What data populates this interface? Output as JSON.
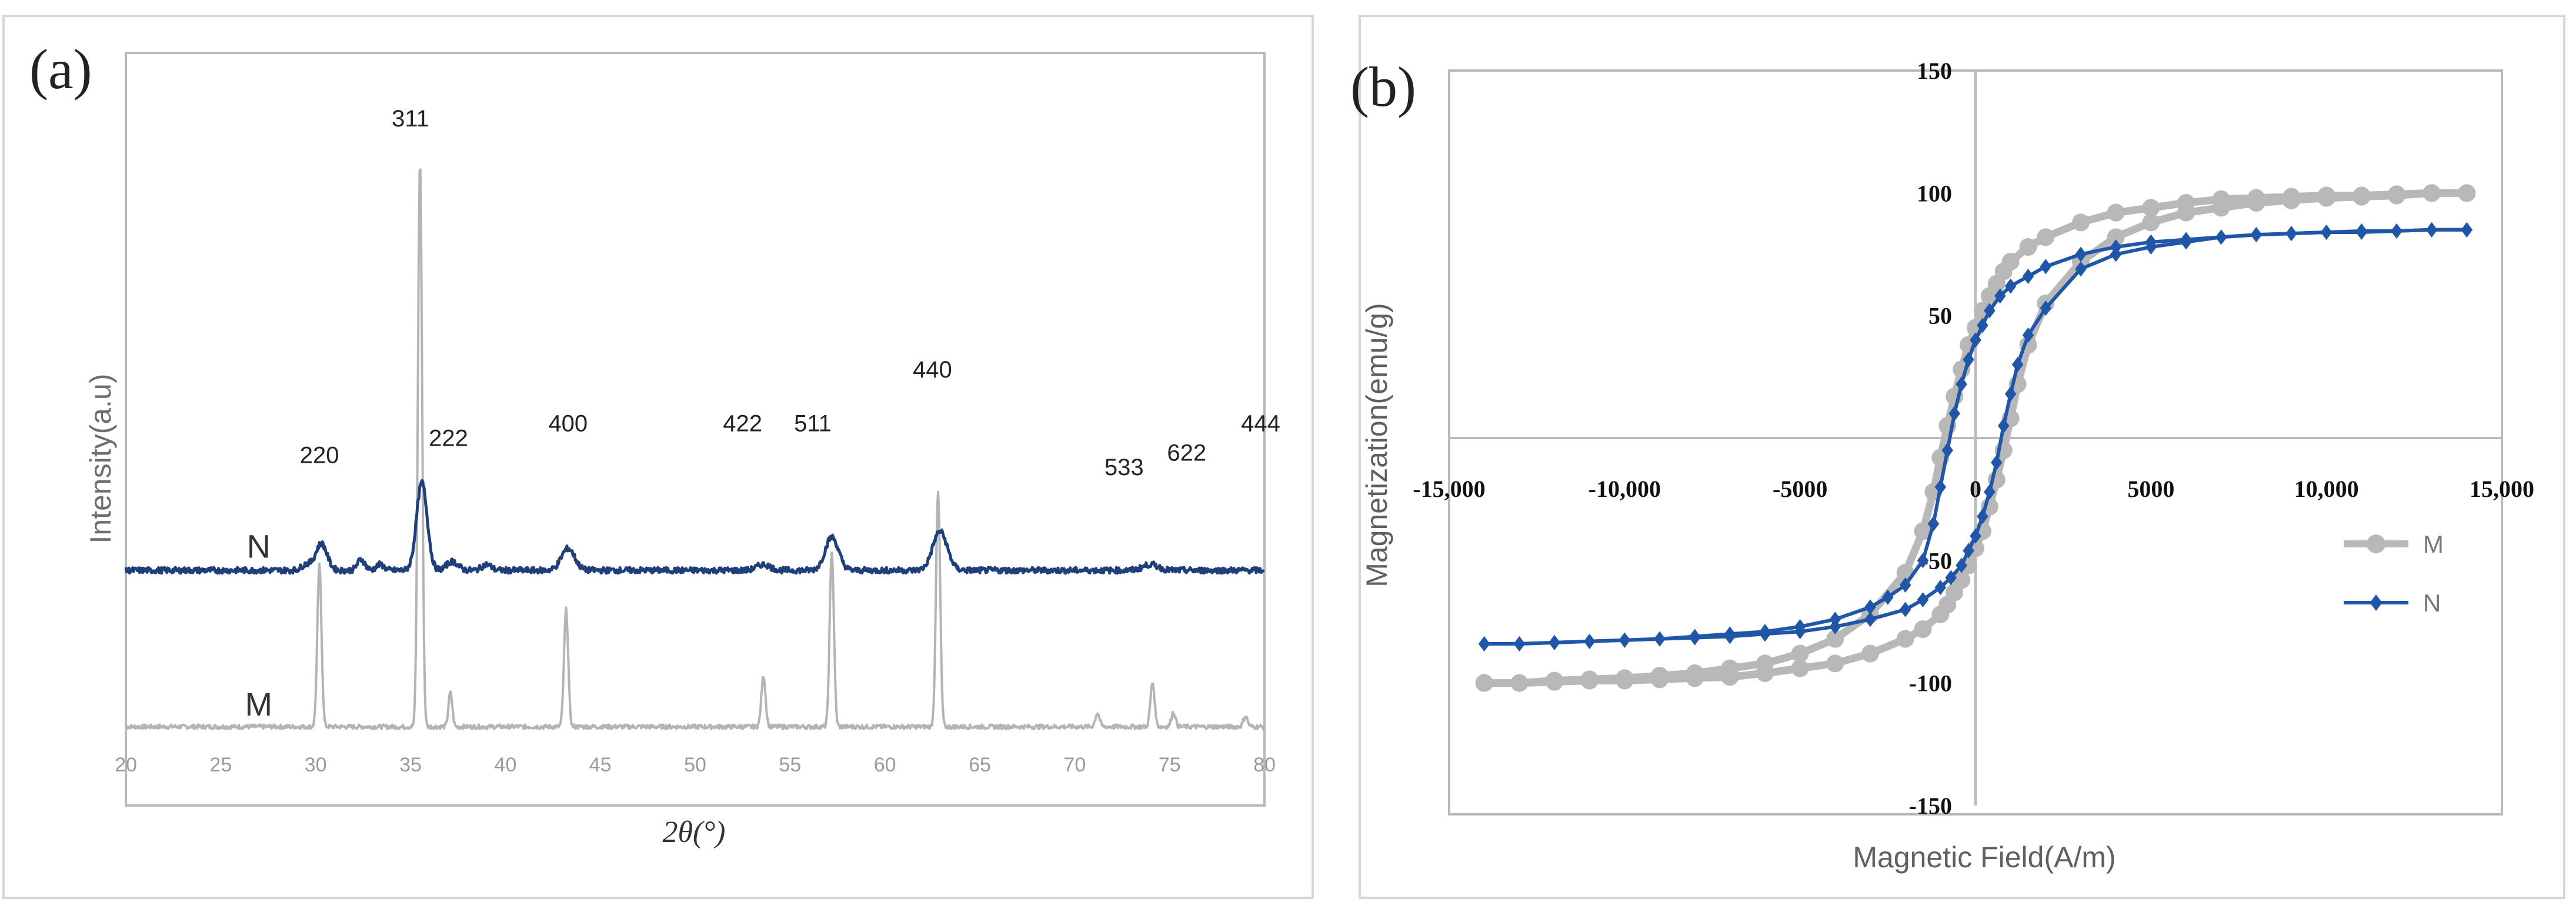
{
  "chart_data": [
    {
      "panel": "(a)",
      "type": "line",
      "xlabel": "2θ(°)",
      "ylabel": "Intensity(a.u)",
      "xlim": [
        20,
        80
      ],
      "x_ticks": [
        "20",
        "25",
        "30",
        "35",
        "40",
        "45",
        "50",
        "55",
        "60",
        "65",
        "70",
        "75",
        "80"
      ],
      "series": [
        {
          "name": "N",
          "color": "#1f3f7a",
          "baseline": 0.94,
          "peaks": [
            {
              "x": 29.5,
              "h": 0.12,
              "w": 0.25
            },
            {
              "x": 30.3,
              "h": 0.55,
              "w": 0.3
            },
            {
              "x": 32.4,
              "h": 0.22,
              "w": 0.2
            },
            {
              "x": 33.4,
              "h": 0.12,
              "w": 0.2
            },
            {
              "x": 35.6,
              "h": 1.8,
              "w": 0.28
            },
            {
              "x": 37.2,
              "h": 0.18,
              "w": 0.3
            },
            {
              "x": 39.0,
              "h": 0.12,
              "w": 0.25
            },
            {
              "x": 43.3,
              "h": 0.45,
              "w": 0.35
            },
            {
              "x": 53.6,
              "h": 0.12,
              "w": 0.35
            },
            {
              "x": 57.2,
              "h": 0.68,
              "w": 0.35
            },
            {
              "x": 62.9,
              "h": 0.8,
              "w": 0.38
            },
            {
              "x": 74.0,
              "h": 0.12,
              "w": 0.4
            }
          ]
        },
        {
          "name": "M",
          "color": "#b4b4b4",
          "baseline": 0.0,
          "peaks": [
            {
              "x": 30.2,
              "h": 3.3,
              "w": 0.11
            },
            {
              "x": 35.5,
              "h": 11.6,
              "w": 0.11
            },
            {
              "x": 37.1,
              "h": 0.7,
              "w": 0.1
            },
            {
              "x": 43.2,
              "h": 2.4,
              "w": 0.11
            },
            {
              "x": 53.6,
              "h": 1.05,
              "w": 0.11
            },
            {
              "x": 57.2,
              "h": 3.6,
              "w": 0.11
            },
            {
              "x": 62.8,
              "h": 4.8,
              "w": 0.11
            },
            {
              "x": 71.2,
              "h": 0.28,
              "w": 0.11
            },
            {
              "x": 74.1,
              "h": 0.9,
              "w": 0.11
            },
            {
              "x": 75.2,
              "h": 0.3,
              "w": 0.11
            },
            {
              "x": 79.0,
              "h": 0.22,
              "w": 0.11
            }
          ]
        }
      ],
      "series_labels": [
        {
          "text": "N",
          "x": 27.0,
          "y": 1.2
        },
        {
          "text": "M",
          "x": 27.0,
          "y": 0.23
        }
      ],
      "peak_labels": [
        {
          "text": "220",
          "x": 30.2,
          "y": 2.2
        },
        {
          "text": "311",
          "x": 35.0,
          "y": 12.3
        },
        {
          "text": "222",
          "x": 37.0,
          "y": 2.55
        },
        {
          "text": "400",
          "x": 43.3,
          "y": 2.85
        },
        {
          "text": "422",
          "x": 52.5,
          "y": 2.85
        },
        {
          "text": "511",
          "x": 56.2,
          "y": 2.85
        },
        {
          "text": "440",
          "x": 62.5,
          "y": 3.95
        },
        {
          "text": "533",
          "x": 72.6,
          "y": 1.95
        },
        {
          "text": "622",
          "x": 75.9,
          "y": 2.25
        },
        {
          "text": "444",
          "x": 79.8,
          "y": 2.85
        }
      ],
      "panel_label": "(a)"
    },
    {
      "panel": "(b)",
      "type": "line",
      "xlabel": "Magnetic Field(A/m)",
      "ylabel": "Magnetization(emu/g)",
      "xlim": [
        -15000,
        15000
      ],
      "ylim": [
        -150,
        150
      ],
      "x_ticks": [
        {
          "value": -15000,
          "label": "-15,000"
        },
        {
          "value": -10000,
          "label": "-10,000"
        },
        {
          "value": -5000,
          "label": "-5000"
        },
        {
          "value": 0,
          "label": "0"
        },
        {
          "value": 5000,
          "label": "5000"
        },
        {
          "value": 10000,
          "label": "10,000"
        },
        {
          "value": 15000,
          "label": "15,000"
        }
      ],
      "y_ticks": [
        {
          "value": 150,
          "label": "150"
        },
        {
          "value": 100,
          "label": "100"
        },
        {
          "value": 50,
          "label": "50"
        },
        {
          "value": -50,
          "label": "-50"
        },
        {
          "value": -100,
          "label": "-100"
        },
        {
          "value": -150,
          "label": "-150"
        }
      ],
      "legend": [
        "M",
        "N"
      ],
      "legend_position": "right",
      "series": [
        {
          "name": "M",
          "color": "#b8b8b8",
          "marker": "circle",
          "descending": [
            [
              14000,
              100
            ],
            [
              13000,
              100
            ],
            [
              12000,
              99.5
            ],
            [
              11000,
              99
            ],
            [
              10000,
              99
            ],
            [
              9000,
              98.5
            ],
            [
              8000,
              98
            ],
            [
              7000,
              97.5
            ],
            [
              6000,
              96
            ],
            [
              5000,
              94
            ],
            [
              4000,
              92
            ],
            [
              3000,
              88
            ],
            [
              2000,
              82
            ],
            [
              1500,
              78
            ],
            [
              1000,
              72
            ],
            [
              800,
              68
            ],
            [
              600,
              63
            ],
            [
              400,
              58
            ],
            [
              200,
              52
            ],
            [
              0,
              45
            ],
            [
              -200,
              38
            ],
            [
              -400,
              28
            ],
            [
              -600,
              17
            ],
            [
              -800,
              5
            ],
            [
              -1000,
              -8
            ],
            [
              -1200,
              -22
            ],
            [
              -1500,
              -38
            ],
            [
              -2000,
              -55
            ],
            [
              -3000,
              -72
            ],
            [
              -4000,
              -82
            ],
            [
              -5000,
              -88
            ],
            [
              -6000,
              -92
            ],
            [
              -7000,
              -94
            ],
            [
              -8000,
              -96
            ],
            [
              -9000,
              -97
            ],
            [
              -10000,
              -98
            ],
            [
              -11000,
              -98.5
            ],
            [
              -12000,
              -99
            ],
            [
              -13000,
              -100
            ],
            [
              -14000,
              -100
            ]
          ],
          "ascending": [
            [
              -14000,
              -100
            ],
            [
              -13000,
              -100
            ],
            [
              -12000,
              -99.5
            ],
            [
              -11000,
              -99
            ],
            [
              -10000,
              -99
            ],
            [
              -9000,
              -98.5
            ],
            [
              -8000,
              -98
            ],
            [
              -7000,
              -97.5
            ],
            [
              -6000,
              -96
            ],
            [
              -5000,
              -94
            ],
            [
              -4000,
              -92
            ],
            [
              -3000,
              -88
            ],
            [
              -2000,
              -82
            ],
            [
              -1500,
              -78
            ],
            [
              -1000,
              -72
            ],
            [
              -800,
              -68
            ],
            [
              -600,
              -63
            ],
            [
              -400,
              -58
            ],
            [
              -200,
              -52
            ],
            [
              0,
              -45
            ],
            [
              200,
              -38
            ],
            [
              400,
              -28
            ],
            [
              600,
              -17
            ],
            [
              800,
              -5
            ],
            [
              1000,
              8
            ],
            [
              1200,
              22
            ],
            [
              1500,
              38
            ],
            [
              2000,
              55
            ],
            [
              3000,
              72
            ],
            [
              4000,
              82
            ],
            [
              5000,
              88
            ],
            [
              6000,
              92
            ],
            [
              7000,
              94
            ],
            [
              8000,
              96
            ],
            [
              9000,
              97
            ],
            [
              10000,
              98
            ],
            [
              11000,
              98.5
            ],
            [
              12000,
              99
            ],
            [
              13000,
              100
            ],
            [
              14000,
              100
            ]
          ]
        },
        {
          "name": "N",
          "color": "#1f56a8",
          "marker": "diamond",
          "descending": [
            [
              14000,
              85
            ],
            [
              13000,
              85
            ],
            [
              12000,
              84.5
            ],
            [
              11000,
              84
            ],
            [
              10000,
              84
            ],
            [
              9000,
              83.5
            ],
            [
              8000,
              83
            ],
            [
              7000,
              82
            ],
            [
              6000,
              81
            ],
            [
              5000,
              80
            ],
            [
              4000,
              78
            ],
            [
              3000,
              75
            ],
            [
              2000,
              70
            ],
            [
              1500,
              66
            ],
            [
              1000,
              62
            ],
            [
              700,
              58
            ],
            [
              400,
              52
            ],
            [
              200,
              46
            ],
            [
              0,
              40
            ],
            [
              -200,
              32
            ],
            [
              -400,
              22
            ],
            [
              -600,
              10
            ],
            [
              -800,
              -5
            ],
            [
              -1000,
              -20
            ],
            [
              -1200,
              -35
            ],
            [
              -1500,
              -50
            ],
            [
              -2000,
              -60
            ],
            [
              -2500,
              -65
            ],
            [
              -3000,
              -69
            ],
            [
              -4000,
              -74
            ],
            [
              -5000,
              -77
            ],
            [
              -6000,
              -79
            ],
            [
              -7000,
              -80
            ],
            [
              -8000,
              -81
            ],
            [
              -9000,
              -82
            ],
            [
              -10000,
              -82.5
            ],
            [
              -11000,
              -83
            ],
            [
              -12000,
              -83.5
            ],
            [
              -13000,
              -84
            ],
            [
              -14000,
              -84
            ]
          ],
          "ascending": [
            [
              -14000,
              -84
            ],
            [
              -13000,
              -84
            ],
            [
              -12000,
              -83.5
            ],
            [
              -11000,
              -83
            ],
            [
              -10000,
              -82.5
            ],
            [
              -9000,
              -82
            ],
            [
              -8000,
              -81.5
            ],
            [
              -7000,
              -81
            ],
            [
              -6000,
              -80
            ],
            [
              -5000,
              -79
            ],
            [
              -4000,
              -77
            ],
            [
              -3000,
              -74
            ],
            [
              -2000,
              -70
            ],
            [
              -1500,
              -66
            ],
            [
              -1000,
              -61
            ],
            [
              -700,
              -57
            ],
            [
              -400,
              -52
            ],
            [
              -200,
              -46
            ],
            [
              0,
              -40
            ],
            [
              200,
              -32
            ],
            [
              400,
              -22
            ],
            [
              600,
              -10
            ],
            [
              800,
              5
            ],
            [
              1000,
              18
            ],
            [
              1200,
              30
            ],
            [
              1500,
              42
            ],
            [
              2000,
              53
            ],
            [
              3000,
              69
            ],
            [
              4000,
              75
            ],
            [
              5000,
              78
            ],
            [
              6000,
              80
            ],
            [
              7000,
              82
            ],
            [
              8000,
              83
            ],
            [
              9000,
              83.5
            ],
            [
              10000,
              84
            ],
            [
              11000,
              84.5
            ],
            [
              12000,
              84.5
            ],
            [
              13000,
              85
            ],
            [
              14000,
              85
            ]
          ]
        }
      ],
      "panel_label": "(b)"
    }
  ]
}
